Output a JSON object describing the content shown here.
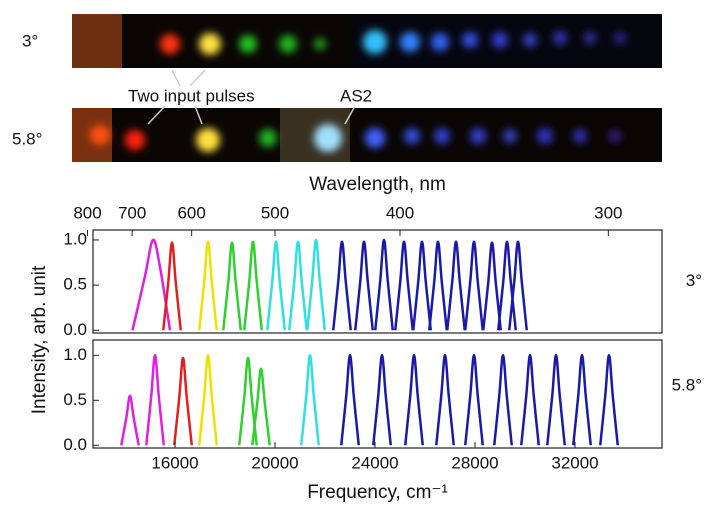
{
  "photos": {
    "strips": [
      {
        "label": "3°"
      },
      {
        "label": "5.8°"
      }
    ],
    "annotations": [
      "Two input pulses",
      "AS2"
    ]
  },
  "chart_data": [
    {
      "type": "line",
      "angle_label": "3°",
      "ylabel": "Intensity, arb. unit",
      "x2label": "Wavelength, nm",
      "x2ticks": [
        800,
        700,
        600,
        500,
        400,
        300
      ],
      "xlim": [
        12720,
        35480
      ],
      "ylim": [
        -0.03,
        1.11
      ],
      "yticks": [
        {
          "value": 0,
          "label": "0.0"
        },
        {
          "value": 0.5,
          "label": "0.5"
        },
        {
          "value": 1,
          "label": "1.0"
        }
      ],
      "series": [
        {
          "color": "#e020e0",
          "x": [
            14300,
            14800,
            15120,
            15400,
            15800
          ],
          "values": [
            0,
            0.6,
            1.0,
            0.7,
            0
          ]
        },
        {
          "color": "#e02020",
          "x": [
            15530,
            15730,
            15880,
            16030,
            16230
          ],
          "values": [
            0,
            0.53,
            0.97,
            0.53,
            0
          ]
        },
        {
          "color": "#f0e000",
          "x": [
            16970,
            17170,
            17320,
            17470,
            17670
          ],
          "values": [
            0,
            0.54,
            0.98,
            0.54,
            0
          ]
        },
        {
          "color": "#30d030",
          "x": [
            17930,
            18130,
            18280,
            18430,
            18630
          ],
          "values": [
            0,
            0.53,
            0.97,
            0.53,
            0
          ]
        },
        {
          "color": "#30d030",
          "x": [
            18770,
            18970,
            19120,
            19270,
            19470
          ],
          "values": [
            0,
            0.54,
            0.98,
            0.54,
            0
          ]
        },
        {
          "color": "#30e0e0",
          "x": [
            19690,
            19890,
            20040,
            20190,
            20390
          ],
          "values": [
            0,
            0.54,
            0.98,
            0.54,
            0
          ]
        },
        {
          "color": "#30e0e0",
          "x": [
            20570,
            20770,
            20920,
            21070,
            21270
          ],
          "values": [
            0,
            0.54,
            0.98,
            0.54,
            0
          ]
        },
        {
          "color": "#30e0e0",
          "x": [
            21290,
            21490,
            21640,
            21790,
            21990
          ],
          "values": [
            0,
            0.55,
            1.0,
            0.55,
            0
          ]
        },
        {
          "color": "#1a1aa8",
          "x": [
            22330,
            22530,
            22680,
            22830,
            23030
          ],
          "values": [
            0,
            0.54,
            0.98,
            0.54,
            0
          ]
        },
        {
          "color": "#1a1aa8",
          "x": [
            23210,
            23410,
            23560,
            23710,
            23910
          ],
          "values": [
            0,
            0.54,
            0.98,
            0.54,
            0
          ]
        },
        {
          "color": "#1a1aa8",
          "x": [
            24010,
            24210,
            24360,
            24510,
            24710
          ],
          "values": [
            0,
            0.55,
            1.0,
            0.55,
            0
          ]
        },
        {
          "color": "#1a1aa8",
          "x": [
            24810,
            25010,
            25160,
            25310,
            25510
          ],
          "values": [
            0,
            0.54,
            0.98,
            0.54,
            0
          ]
        },
        {
          "color": "#1a1aa8",
          "x": [
            25530,
            25730,
            25880,
            26030,
            26230
          ],
          "values": [
            0,
            0.54,
            0.98,
            0.54,
            0
          ]
        },
        {
          "color": "#1a1aa8",
          "x": [
            26170,
            26370,
            26520,
            26670,
            26870
          ],
          "values": [
            0,
            0.54,
            0.98,
            0.54,
            0
          ]
        },
        {
          "color": "#1a1aa8",
          "x": [
            26890,
            27090,
            27240,
            27390,
            27590
          ],
          "values": [
            0,
            0.54,
            0.98,
            0.54,
            0
          ]
        },
        {
          "color": "#1a1aa8",
          "x": [
            27610,
            27810,
            27960,
            28110,
            28310
          ],
          "values": [
            0,
            0.54,
            0.98,
            0.54,
            0
          ]
        },
        {
          "color": "#1a1aa8",
          "x": [
            28330,
            28530,
            28680,
            28830,
            29030
          ],
          "values": [
            0,
            0.53,
            0.97,
            0.53,
            0
          ]
        },
        {
          "color": "#1a1aa8",
          "x": [
            28930,
            29130,
            29280,
            29430,
            29630
          ],
          "values": [
            0,
            0.54,
            0.98,
            0.54,
            0
          ]
        },
        {
          "color": "#1a1aa8",
          "x": [
            29370,
            29570,
            29720,
            29870,
            30070
          ],
          "values": [
            0,
            0.54,
            0.98,
            0.54,
            0
          ]
        }
      ]
    },
    {
      "type": "line",
      "angle_label": "5.8°",
      "xlabel": "Frequency, cm⁻¹",
      "xticks": [
        16000,
        20000,
        24000,
        28000,
        32000
      ],
      "xlim": [
        12720,
        35480
      ],
      "ylim": [
        -0.03,
        1.17
      ],
      "yticks": [
        {
          "value": 0,
          "label": "0.0"
        },
        {
          "value": 0.5,
          "label": "0.5"
        },
        {
          "value": 1,
          "label": "1.0"
        }
      ],
      "series": [
        {
          "color": "#e020e0",
          "x": [
            13850,
            14050,
            14200,
            14350,
            14550
          ],
          "values": [
            0,
            0.3,
            0.55,
            0.3,
            0
          ]
        },
        {
          "color": "#e020e0",
          "x": [
            14850,
            15050,
            15200,
            15350,
            15550
          ],
          "values": [
            0,
            0.55,
            1.0,
            0.55,
            0
          ]
        },
        {
          "color": "#e02020",
          "x": [
            15970,
            16170,
            16320,
            16470,
            16670
          ],
          "values": [
            0,
            0.53,
            0.97,
            0.53,
            0
          ]
        },
        {
          "color": "#f0e000",
          "x": [
            16970,
            17170,
            17320,
            17470,
            17670
          ],
          "values": [
            0,
            0.55,
            1.0,
            0.55,
            0
          ]
        },
        {
          "color": "#30d030",
          "x": [
            18570,
            18770,
            18920,
            19070,
            19270
          ],
          "values": [
            0,
            0.53,
            0.97,
            0.53,
            0
          ]
        },
        {
          "color": "#30d030",
          "x": [
            19090,
            19290,
            19440,
            19590,
            19790
          ],
          "values": [
            0,
            0.47,
            0.85,
            0.47,
            0
          ]
        },
        {
          "color": "#30e0e0",
          "x": [
            21050,
            21250,
            21400,
            21550,
            21750
          ],
          "values": [
            0,
            0.55,
            1.0,
            0.55,
            0
          ]
        },
        {
          "color": "#1a1aa8",
          "x": [
            22650,
            22850,
            23000,
            23150,
            23350
          ],
          "values": [
            0,
            0.55,
            1.0,
            0.55,
            0
          ]
        },
        {
          "color": "#1a1aa8",
          "x": [
            23930,
            24130,
            24280,
            24430,
            24630
          ],
          "values": [
            0,
            0.55,
            1.0,
            0.55,
            0
          ]
        },
        {
          "color": "#1a1aa8",
          "x": [
            25210,
            25410,
            25560,
            25710,
            25910
          ],
          "values": [
            0,
            0.55,
            1.0,
            0.55,
            0
          ]
        },
        {
          "color": "#1a1aa8",
          "x": [
            26450,
            26650,
            26800,
            26950,
            27150
          ],
          "values": [
            0,
            0.55,
            1.0,
            0.55,
            0
          ]
        },
        {
          "color": "#1a1aa8",
          "x": [
            27610,
            27810,
            27960,
            28110,
            28310
          ],
          "values": [
            0,
            0.55,
            1.0,
            0.55,
            0
          ]
        },
        {
          "color": "#1a1aa8",
          "x": [
            28770,
            28970,
            29120,
            29270,
            29470
          ],
          "values": [
            0,
            0.55,
            1.0,
            0.55,
            0
          ]
        },
        {
          "color": "#1a1aa8",
          "x": [
            29850,
            30050,
            30200,
            30350,
            30550
          ],
          "values": [
            0,
            0.55,
            1.0,
            0.55,
            0
          ]
        },
        {
          "color": "#1a1aa8",
          "x": [
            30890,
            31090,
            31240,
            31390,
            31590
          ],
          "values": [
            0,
            0.55,
            1.0,
            0.55,
            0
          ]
        },
        {
          "color": "#1a1aa8",
          "x": [
            31930,
            32130,
            32280,
            32430,
            32630
          ],
          "values": [
            0,
            0.55,
            1.0,
            0.55,
            0
          ]
        },
        {
          "color": "#1a1aa8",
          "x": [
            33010,
            33210,
            33360,
            33510,
            33710
          ],
          "values": [
            0,
            0.55,
            1.0,
            0.55,
            0
          ]
        }
      ]
    }
  ]
}
